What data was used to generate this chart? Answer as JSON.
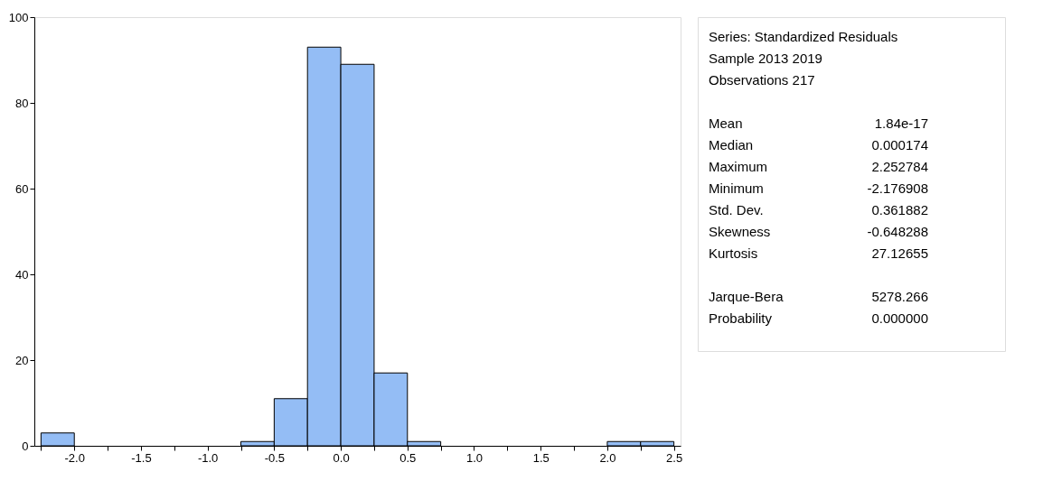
{
  "chart_data": {
    "type": "histogram",
    "bins": [
      -2.25,
      -2.0,
      -1.75,
      -1.5,
      -1.25,
      -1.0,
      -0.75,
      -0.5,
      -0.25,
      0.0,
      0.25,
      0.5,
      0.75,
      1.0,
      1.25,
      1.5,
      1.75,
      2.0,
      2.25,
      2.5
    ],
    "values": [
      3,
      0,
      0,
      0,
      0,
      0,
      1,
      11,
      93,
      89,
      17,
      1,
      0,
      0,
      0,
      0,
      0,
      1,
      1
    ],
    "color": "#94bdf5",
    "xlim": [
      -2.3,
      2.55
    ],
    "xticks": [
      {
        "value": -2.25,
        "label": null
      },
      {
        "value": -2.0,
        "label": "-2.0"
      },
      {
        "value": -1.75,
        "label": null
      },
      {
        "value": -1.5,
        "label": "-1.5"
      },
      {
        "value": -1.25,
        "label": null
      },
      {
        "value": -1.0,
        "label": "-1.0"
      },
      {
        "value": -0.75,
        "label": null
      },
      {
        "value": -0.5,
        "label": "-0.5"
      },
      {
        "value": -0.25,
        "label": null
      },
      {
        "value": 0.0,
        "label": "0.0"
      },
      {
        "value": 0.25,
        "label": null
      },
      {
        "value": 0.5,
        "label": "0.5"
      },
      {
        "value": 0.75,
        "label": null
      },
      {
        "value": 1.0,
        "label": "1.0"
      },
      {
        "value": 1.25,
        "label": null
      },
      {
        "value": 1.5,
        "label": "1.5"
      },
      {
        "value": 1.75,
        "label": null
      },
      {
        "value": 2.0,
        "label": "2.0"
      },
      {
        "value": 2.25,
        "label": null
      },
      {
        "value": 2.5,
        "label": "2.5"
      }
    ],
    "ylim": [
      0,
      100
    ],
    "yticks": [
      0,
      20,
      40,
      60,
      80,
      100
    ],
    "grid": false,
    "annotations": [
      "Series: Standardized Residuals",
      "Sample 2013 2019",
      "Observations 217",
      "Mean",
      "1.84e-17",
      "Median",
      "0.000174",
      "Maximum",
      "2.252784",
      "Minimum",
      "-2.176908",
      "Std. Dev.",
      "0.361882",
      "Skewness",
      "-0.648288",
      "Kurtosis",
      "27.12655",
      "Jarque-Bera",
      "5278.266",
      "Probability",
      "0.000000"
    ]
  }
}
